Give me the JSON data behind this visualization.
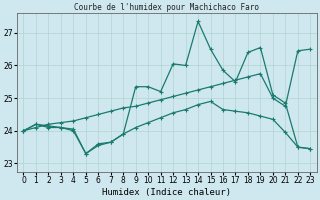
{
  "title": "Courbe de l'humidex pour Machichaco Faro",
  "xlabel": "Humidex (Indice chaleur)",
  "background_color": "#cfe8f0",
  "grid_color": "#b0d4cc",
  "line_color": "#1a7a6e",
  "xlim": [
    -0.5,
    23.5
  ],
  "ylim": [
    22.75,
    27.6
  ],
  "yticks": [
    23,
    24,
    25,
    26,
    27
  ],
  "xticks": [
    0,
    1,
    2,
    3,
    4,
    5,
    6,
    7,
    8,
    9,
    10,
    11,
    12,
    13,
    14,
    15,
    16,
    17,
    18,
    19,
    20,
    21,
    22,
    23
  ],
  "line1_x": [
    0,
    1,
    2,
    3,
    4,
    5,
    6,
    7,
    8,
    9,
    10,
    11,
    12,
    13,
    14,
    15,
    16,
    17,
    18,
    19,
    20,
    21,
    22,
    23
  ],
  "line1_y": [
    24.0,
    24.2,
    24.1,
    24.1,
    24.0,
    23.3,
    23.6,
    23.65,
    23.9,
    24.1,
    24.25,
    24.4,
    24.55,
    24.65,
    24.8,
    24.9,
    24.65,
    24.6,
    24.55,
    24.45,
    24.35,
    23.95,
    23.5,
    23.45
  ],
  "line2_x": [
    0,
    1,
    2,
    3,
    4,
    5,
    6,
    7,
    8,
    9,
    10,
    11,
    12,
    13,
    14,
    15,
    16,
    17,
    18,
    19,
    20,
    21,
    22,
    23
  ],
  "line2_y": [
    24.0,
    24.2,
    24.15,
    24.1,
    24.05,
    23.3,
    23.55,
    23.65,
    23.9,
    25.35,
    25.35,
    25.2,
    26.05,
    26.0,
    27.35,
    26.5,
    25.85,
    25.5,
    26.4,
    26.55,
    25.1,
    24.85,
    23.5,
    23.45
  ],
  "line3_x": [
    0,
    1,
    2,
    3,
    4,
    5,
    6,
    7,
    8,
    9,
    10,
    11,
    12,
    13,
    14,
    15,
    16,
    17,
    18,
    19,
    20,
    21,
    22,
    23
  ],
  "line3_y": [
    24.0,
    24.1,
    24.2,
    24.25,
    24.3,
    24.4,
    24.5,
    24.6,
    24.7,
    24.75,
    24.85,
    24.95,
    25.05,
    25.15,
    25.25,
    25.35,
    25.45,
    25.55,
    25.65,
    25.75,
    25.0,
    24.75,
    26.45,
    26.5
  ]
}
